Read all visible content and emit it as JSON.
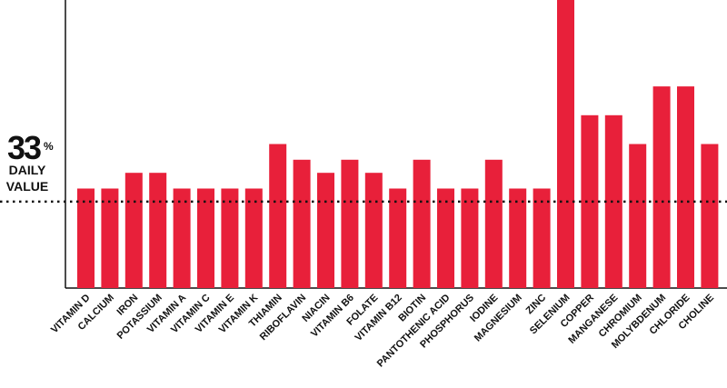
{
  "chart_data": {
    "type": "bar",
    "categories": [
      "VITAMIN D",
      "CALCIUM",
      "IRON",
      "POTASSIUM",
      "VITAMIN A",
      "VITAMIN C",
      "VITAMIN E",
      "VITAMIN K",
      "THIAMIN",
      "RIBOFLAVIN",
      "NIACIN",
      "VITAMIN B6",
      "FOLATE",
      "VITAMIN B12",
      "BIOTIN",
      "PANTOTHENIC ACID",
      "PHOSPHORUS",
      "IODINE",
      "MAGNESIUM",
      "ZINC",
      "SELENIUM",
      "COPPER",
      "MANGANESE",
      "CHROMIUM",
      "MOLYBDENUM",
      "CHLORIDE",
      "CHOLINE"
    ],
    "values": [
      38,
      38,
      44,
      44,
      38,
      38,
      38,
      38,
      55,
      49,
      44,
      49,
      44,
      38,
      49,
      38,
      38,
      49,
      38,
      38,
      110,
      66,
      66,
      55,
      77,
      77,
      55
    ],
    "color": "#e8203a",
    "ylim": [
      0,
      110
    ],
    "grid": false,
    "reference_line": {
      "value": 33,
      "unit": "%",
      "label_lines": [
        "DAILY",
        "VALUE"
      ]
    }
  }
}
